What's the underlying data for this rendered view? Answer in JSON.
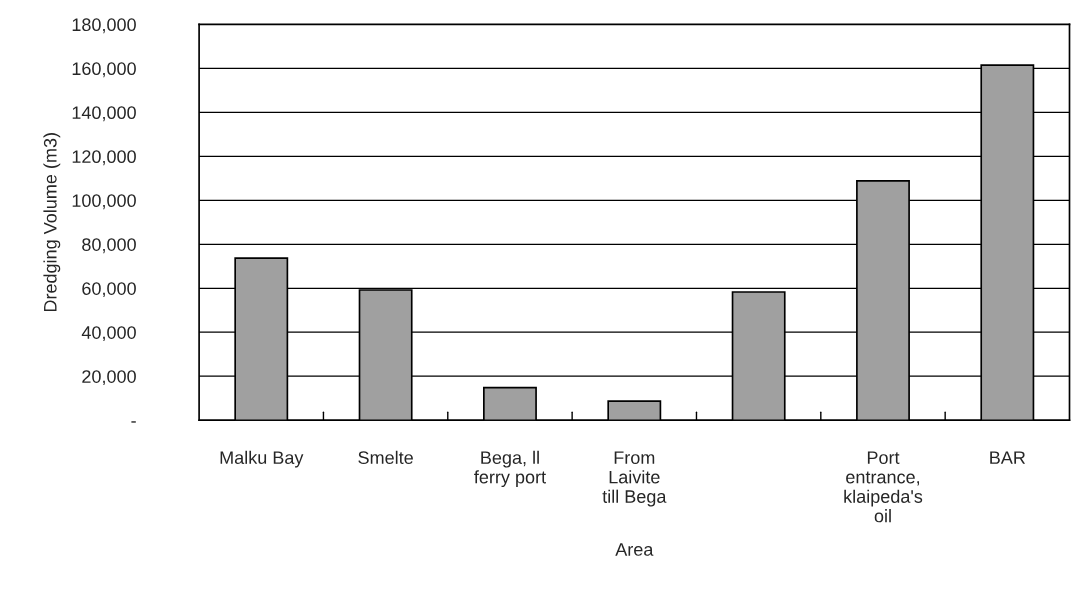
{
  "chart_data": {
    "type": "bar",
    "xlabel": "Area",
    "ylabel": "Dredging Volume (m3)",
    "categories": [
      "Malku Bay",
      "Smelte",
      "Bega, ll ferry port",
      "From Laivite till Bega",
      null,
      "Port entrance, klaipeda's oil",
      "BAR"
    ],
    "values": [
      73700,
      59200,
      14800,
      8700,
      58300,
      108800,
      161500
    ],
    "color": "#a0a0a0",
    "ylim": [
      0,
      180000
    ],
    "yticks": [
      {
        "value": 0,
        "label": "-"
      },
      {
        "value": 20000,
        "label": "20,000"
      },
      {
        "value": 40000,
        "label": "40,000"
      },
      {
        "value": 60000,
        "label": "60,000"
      },
      {
        "value": 80000,
        "label": "80,000"
      },
      {
        "value": 100000,
        "label": "100,000"
      },
      {
        "value": 120000,
        "label": "120,000"
      },
      {
        "value": 140000,
        "label": "140,000"
      },
      {
        "value": 160000,
        "label": "160,000"
      },
      {
        "value": 180000,
        "label": "180,000"
      }
    ],
    "grid": "y"
  }
}
